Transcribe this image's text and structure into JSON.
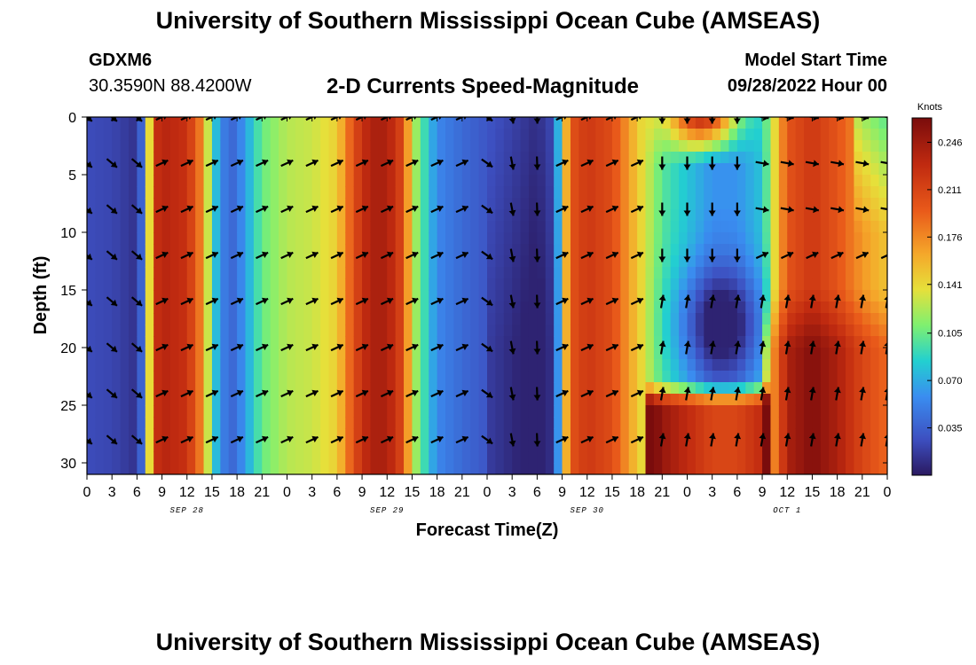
{
  "header": {
    "title": "University of Southern Mississippi Ocean Cube (AMSEAS)",
    "station": "GDXM6",
    "coordinates": "30.3590N  88.4200W",
    "product": "2-D Currents Speed-Magnitude",
    "start_label": "Model Start Time",
    "start_value": "09/28/2022 Hour 00"
  },
  "footer": {
    "title": "University of Southern Mississippi Ocean Cube (AMSEAS)"
  },
  "chart_data": {
    "type": "heatmap",
    "title": "2-D Currents Speed-Magnitude",
    "xlabel": "Forecast Time(Z)",
    "ylabel": "Depth (ft)",
    "xlim": [
      0,
      96
    ],
    "ylim": [
      31,
      0
    ],
    "x_ticks": [
      0,
      3,
      6,
      9,
      12,
      15,
      18,
      21,
      24,
      27,
      30,
      33,
      36,
      39,
      42,
      45,
      48,
      51,
      54,
      57,
      60,
      63,
      66,
      69,
      72,
      75,
      78,
      81,
      84,
      87,
      90,
      93,
      96
    ],
    "x_tick_labels": [
      "0",
      "3",
      "6",
      "9",
      "12",
      "15",
      "18",
      "21",
      "0",
      "3",
      "6",
      "9",
      "12",
      "15",
      "18",
      "21",
      "0",
      "3",
      "6",
      "9",
      "12",
      "15",
      "18",
      "21",
      "0",
      "3",
      "6",
      "9",
      "12",
      "15",
      "18",
      "21",
      "0"
    ],
    "y_ticks": [
      0,
      5,
      10,
      15,
      20,
      25,
      30
    ],
    "day_labels": [
      {
        "text": "SEP 28",
        "hour": 12
      },
      {
        "text": "SEP 29",
        "hour": 36
      },
      {
        "text": "SEP 30",
        "hour": 60
      },
      {
        "text": "OCT 1",
        "hour": 84
      }
    ],
    "colorbar": {
      "unit": "Knots",
      "min": 0.0,
      "max": 0.264,
      "ticks": [
        0.035,
        0.07,
        0.105,
        0.141,
        0.176,
        0.211,
        0.246
      ],
      "tick_labels": [
        "0.035",
        "0.070",
        "0.105",
        "0.141",
        "0.176",
        "0.211",
        "0.246"
      ]
    },
    "arrow_depths_ft": [
      0,
      4,
      8,
      12,
      16,
      20,
      24,
      28
    ],
    "arrow_hours": [
      0,
      3,
      6,
      9,
      12,
      15,
      18,
      21,
      24,
      27,
      30,
      33,
      36,
      39,
      42,
      45,
      48,
      51,
      54,
      57,
      60,
      63,
      66,
      69,
      72,
      75,
      78,
      81,
      84,
      87,
      90,
      93,
      96
    ],
    "speed_profile_hourly": {
      "hours": [
        0,
        3,
        6,
        7,
        8,
        9,
        12,
        14,
        15,
        17,
        18,
        21,
        24,
        27,
        30,
        32,
        34,
        36,
        38,
        39,
        42,
        45,
        48,
        51,
        54,
        56,
        57,
        58,
        60,
        63,
        66,
        69,
        72,
        75,
        78,
        81,
        84,
        87,
        90,
        93,
        96
      ],
      "values": [
        0.025,
        0.022,
        0.012,
        0.06,
        0.22,
        0.235,
        0.225,
        0.17,
        0.09,
        0.035,
        0.045,
        0.105,
        0.125,
        0.13,
        0.145,
        0.205,
        0.24,
        0.24,
        0.205,
        0.13,
        0.055,
        0.04,
        0.03,
        0.02,
        0.01,
        0.025,
        0.12,
        0.2,
        0.22,
        0.205,
        0.15,
        0.1,
        0.08,
        0.06,
        0.06,
        0.08,
        0.2,
        0.22,
        0.2,
        0.17,
        0.15
      ]
    }
  }
}
